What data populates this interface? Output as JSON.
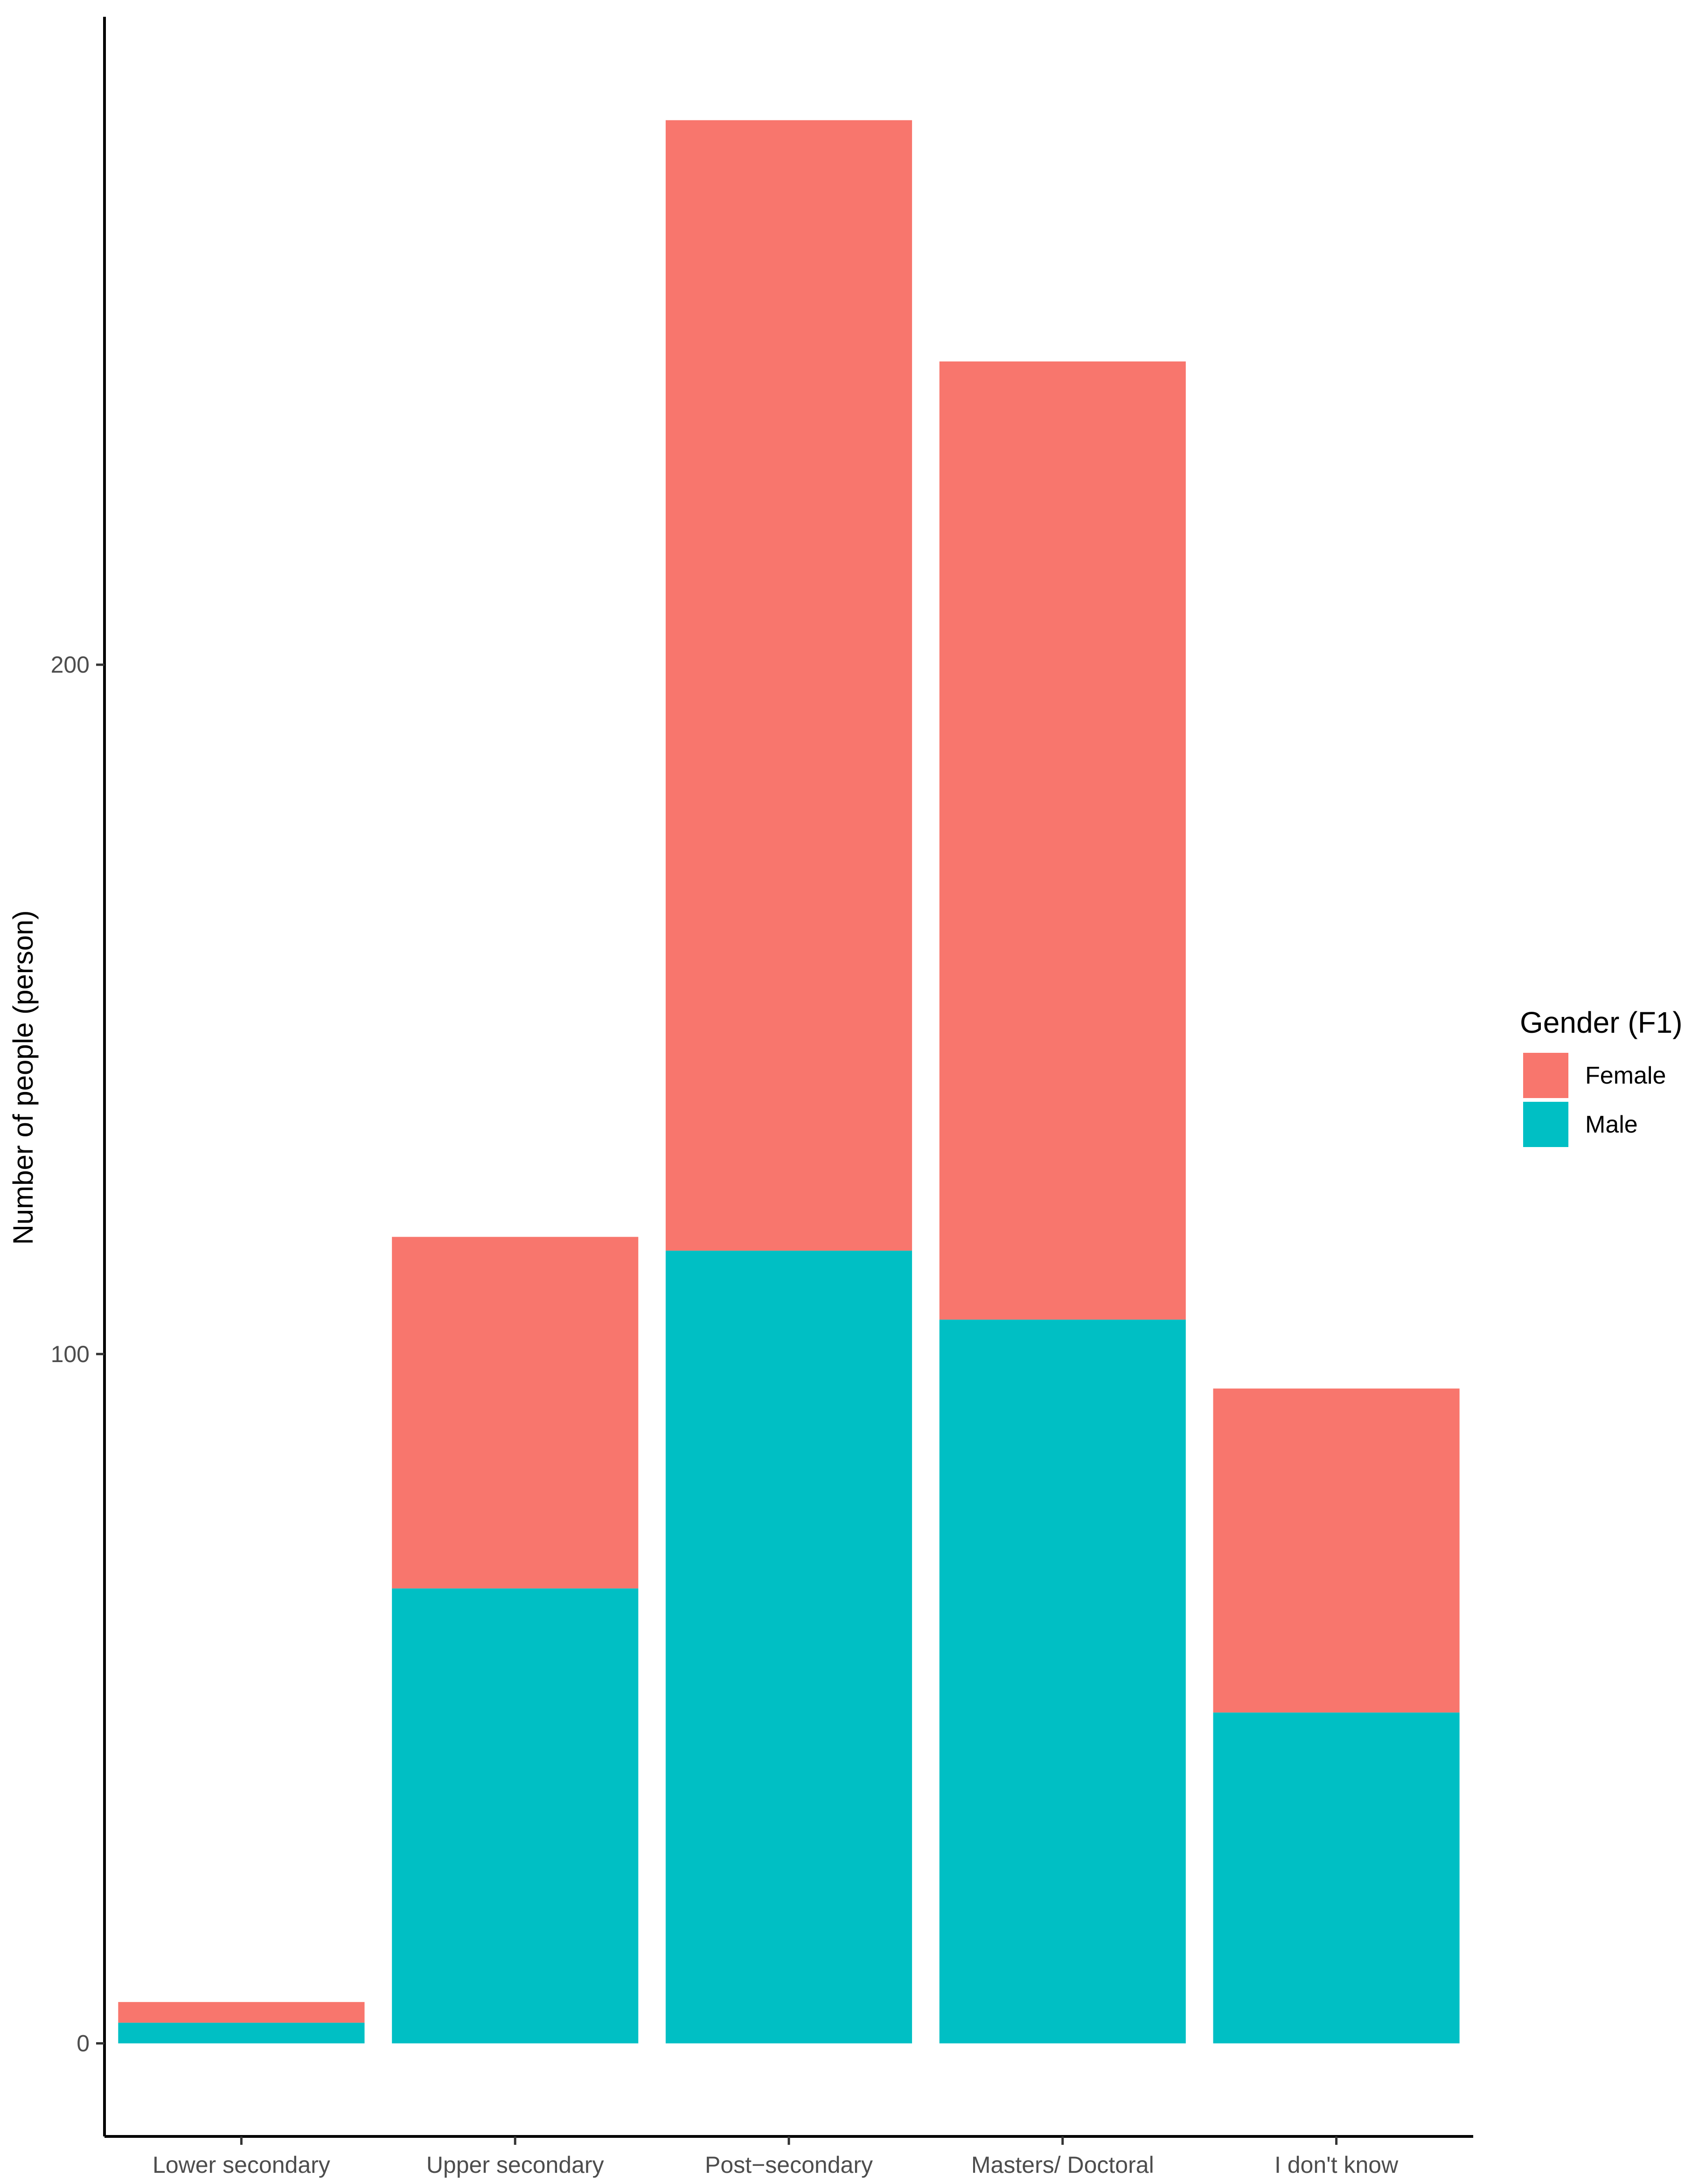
{
  "chart_data": {
    "type": "bar",
    "stacked": true,
    "categories": [
      "Lower secondary",
      "Upper secondary",
      "Post−secondary",
      "Masters/ Doctoral",
      "I don't know"
    ],
    "series": [
      {
        "name": "Male",
        "values": [
          3,
          66,
          115,
          105,
          48
        ],
        "color": "#00BFC4"
      },
      {
        "name": "Female",
        "values": [
          3,
          51,
          164,
          139,
          47
        ],
        "color": "#F8766D"
      }
    ],
    "title": "",
    "xlabel": "",
    "ylabel": "Number of people (person)",
    "yticks": [
      "0",
      "100",
      "200"
    ],
    "ylim": [
      -13.5,
      294
    ],
    "legend": {
      "title": "Gender (F1)",
      "position": "right",
      "entries": [
        {
          "label": "Female",
          "color": "#F8766D"
        },
        {
          "label": "Male",
          "color": "#00BFC4"
        }
      ]
    },
    "grid": false
  }
}
